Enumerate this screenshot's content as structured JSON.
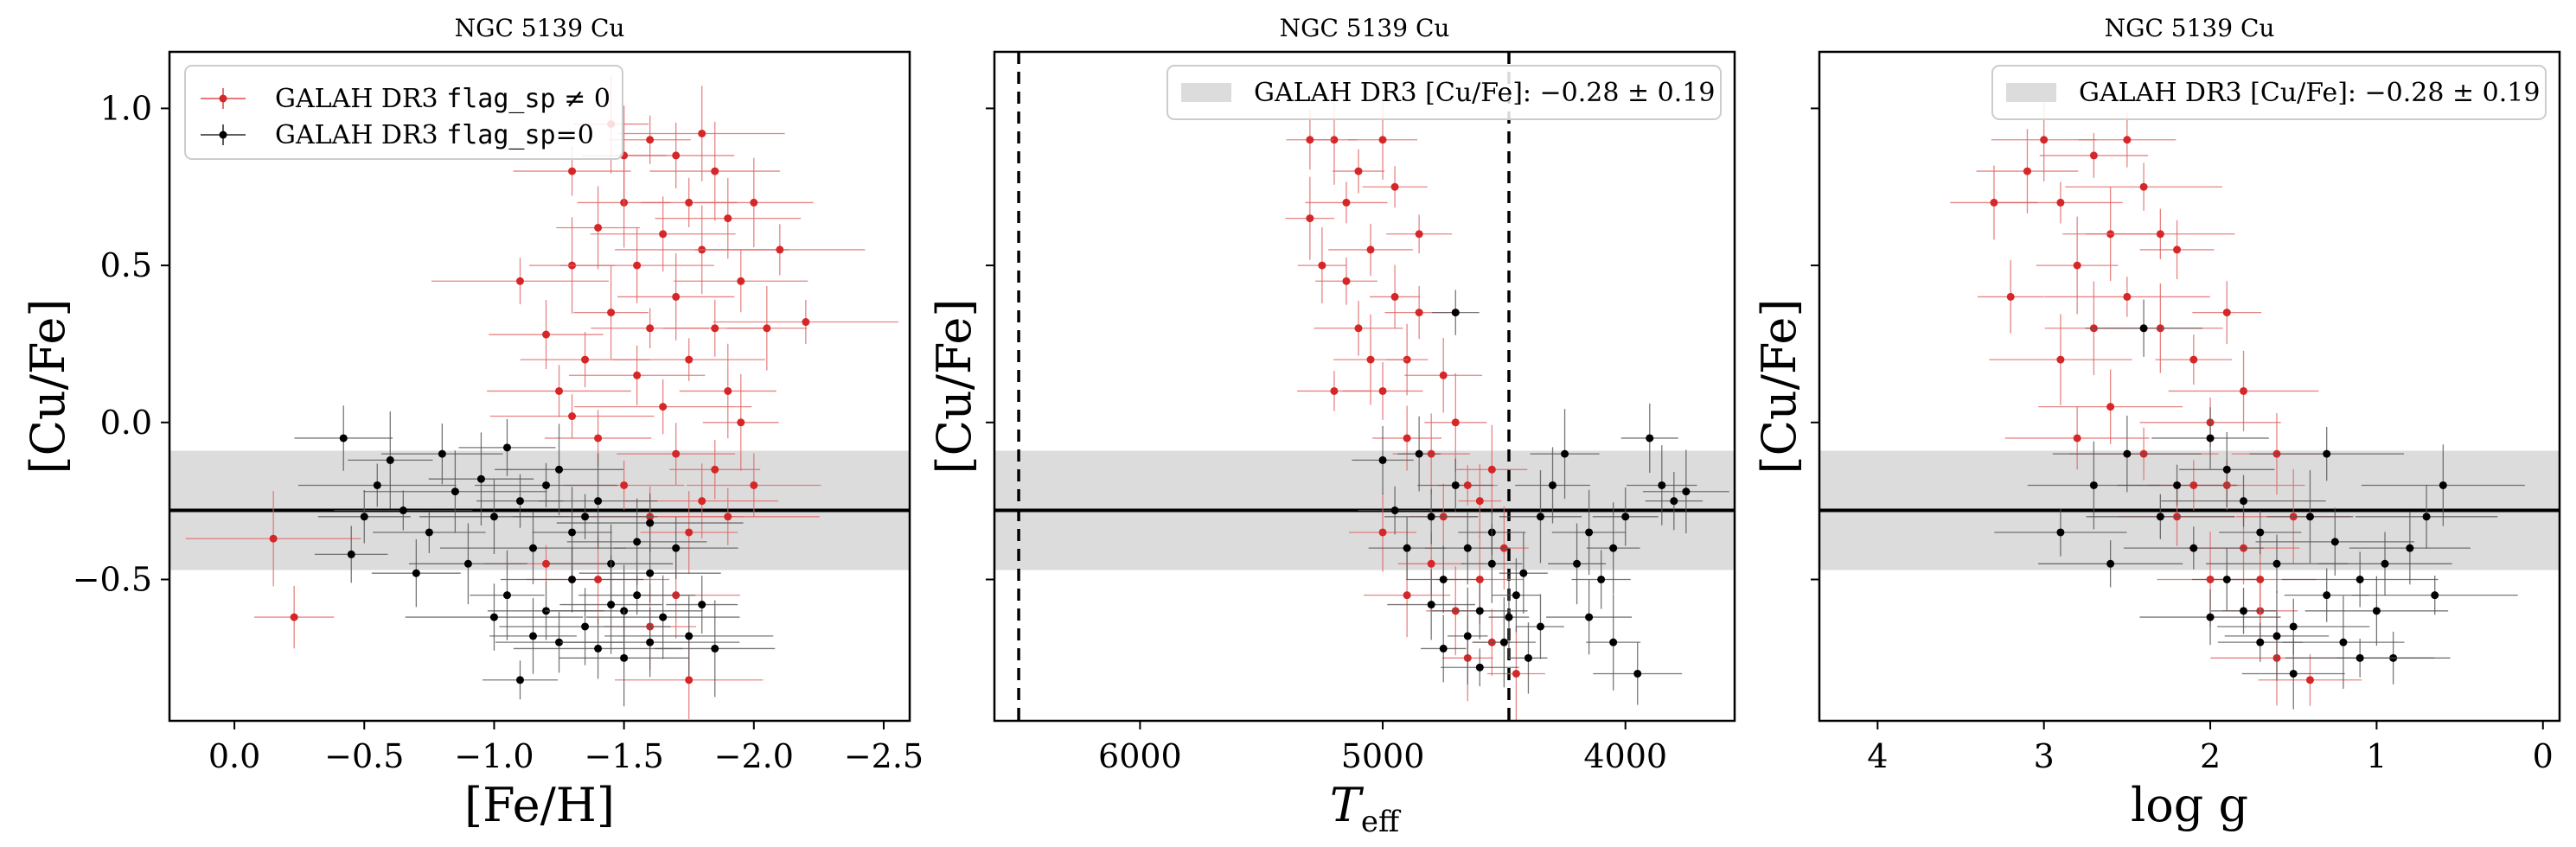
{
  "figure": {
    "panels": [
      {
        "title": "NGC 5139 Cu",
        "xlabel": "[Fe/H]",
        "ylabel": "[Cu/Fe]",
        "xticks": [
          "0.0",
          "−0.5",
          "−1.0",
          "−1.5",
          "−2.0",
          "−2.5"
        ],
        "yticks": [
          "1.0",
          "0.5",
          "0.0",
          "−0.5"
        ],
        "legend": {
          "flagged_prefix": "GALAH DR3 ",
          "flagged_code": "flag_sp",
          "flagged_suffix": " ≠ 0",
          "clean_prefix": "GALAH DR3 ",
          "clean_code": "flag_sp",
          "clean_suffix": "=0"
        }
      },
      {
        "title": "NGC 5139 Cu",
        "xlabel": "T",
        "xlabel_sub": "eff",
        "ylabel": "[Cu/Fe]",
        "xticks": [
          "6000",
          "5000",
          "4000"
        ],
        "legend": {
          "band": "GALAH DR3 [Cu/Fe]: −0.28 ± 0.19"
        }
      },
      {
        "title": "NGC 5139 Cu",
        "xlabel": "log g",
        "ylabel": "[Cu/Fe]",
        "xticks": [
          "4",
          "3",
          "2",
          "1",
          "0"
        ],
        "legend": {
          "band": "GALAH DR3 [Cu/Fe]: −0.28 ± 0.19"
        }
      }
    ]
  },
  "chart_data": [
    {
      "type": "scatter",
      "title": "NGC 5139 Cu",
      "xlabel": "[Fe/H]",
      "ylabel": "[Cu/Fe]",
      "xlim": [
        0.25,
        -2.6
      ],
      "ylim": [
        -0.95,
        1.18
      ],
      "reference": {
        "value": -0.28,
        "sigma": 0.19,
        "label": "GALAH DR3 [Cu/Fe]: −0.28 ± 0.19"
      },
      "grid": false,
      "legend_position": "top-left",
      "colors": {
        "flagged": "#d62728",
        "clean": "#000000",
        "band": "#dcdcdc"
      },
      "series": [
        {
          "name": "GALAH DR3 flag_sp ≠ 0",
          "points": [
            [
              -0.15,
              -0.37
            ],
            [
              -0.23,
              -0.62
            ],
            [
              -1.1,
              0.45
            ],
            [
              -1.2,
              0.28
            ],
            [
              -1.25,
              0.1
            ],
            [
              -1.3,
              0.5
            ],
            [
              -1.3,
              0.8
            ],
            [
              -1.35,
              0.2
            ],
            [
              -1.4,
              0.62
            ],
            [
              -1.4,
              -0.05
            ],
            [
              -1.45,
              0.35
            ],
            [
              -1.5,
              0.7
            ],
            [
              -1.5,
              -0.2
            ],
            [
              -1.55,
              0.15
            ],
            [
              -1.55,
              0.5
            ],
            [
              -1.6,
              0.9
            ],
            [
              -1.6,
              0.3
            ],
            [
              -1.6,
              -0.3
            ],
            [
              -1.65,
              0.6
            ],
            [
              -1.65,
              0.05
            ],
            [
              -1.7,
              0.85
            ],
            [
              -1.7,
              0.4
            ],
            [
              -1.7,
              -0.1
            ],
            [
              -1.75,
              0.7
            ],
            [
              -1.75,
              0.2
            ],
            [
              -1.75,
              -0.35
            ],
            [
              -1.8,
              0.92
            ],
            [
              -1.8,
              0.55
            ],
            [
              -1.8,
              -0.25
            ],
            [
              -1.85,
              0.8
            ],
            [
              -1.85,
              0.3
            ],
            [
              -1.85,
              -0.15
            ],
            [
              -1.9,
              0.65
            ],
            [
              -1.9,
              0.1
            ],
            [
              -1.9,
              -0.3
            ],
            [
              -1.95,
              0.45
            ],
            [
              -1.95,
              0.0
            ],
            [
              -2.0,
              0.7
            ],
            [
              -2.0,
              -0.2
            ],
            [
              -2.05,
              0.3
            ],
            [
              -2.1,
              0.55
            ],
            [
              -2.2,
              0.32
            ],
            [
              -1.75,
              -0.82
            ],
            [
              -1.4,
              -0.5
            ],
            [
              -1.6,
              -0.65
            ],
            [
              -1.5,
              0.85
            ],
            [
              -1.45,
              0.95
            ],
            [
              -1.7,
              -0.55
            ],
            [
              -1.3,
              0.02
            ],
            [
              -1.2,
              -0.45
            ]
          ]
        },
        {
          "name": "GALAH DR3 flag_sp=0",
          "points": [
            [
              -0.42,
              -0.05
            ],
            [
              -0.45,
              -0.42
            ],
            [
              -0.5,
              -0.3
            ],
            [
              -0.55,
              -0.2
            ],
            [
              -0.6,
              -0.12
            ],
            [
              -0.65,
              -0.28
            ],
            [
              -0.75,
              -0.35
            ],
            [
              -0.8,
              -0.1
            ],
            [
              -0.85,
              -0.22
            ],
            [
              -0.9,
              -0.45
            ],
            [
              -0.95,
              -0.18
            ],
            [
              -1.0,
              -0.3
            ],
            [
              -1.05,
              -0.08
            ],
            [
              -1.05,
              -0.55
            ],
            [
              -1.1,
              -0.82
            ],
            [
              -1.1,
              -0.25
            ],
            [
              -1.15,
              -0.4
            ],
            [
              -1.2,
              -0.6
            ],
            [
              -1.25,
              -0.15
            ],
            [
              -1.25,
              -0.7
            ],
            [
              -1.3,
              -0.35
            ],
            [
              -1.3,
              -0.5
            ],
            [
              -1.35,
              -0.65
            ],
            [
              -1.4,
              -0.25
            ],
            [
              -1.4,
              -0.72
            ],
            [
              -1.45,
              -0.45
            ],
            [
              -1.5,
              -0.6
            ],
            [
              -1.5,
              -0.75
            ],
            [
              -1.55,
              -0.38
            ],
            [
              -1.55,
              -0.55
            ],
            [
              -1.6,
              -0.7
            ],
            [
              -1.6,
              -0.48
            ],
            [
              -1.65,
              -0.62
            ],
            [
              -1.7,
              -0.4
            ],
            [
              -1.75,
              -0.68
            ],
            [
              -1.8,
              -0.58
            ],
            [
              -1.85,
              -0.72
            ],
            [
              -1.2,
              -0.2
            ],
            [
              -1.35,
              -0.3
            ],
            [
              -0.7,
              -0.48
            ],
            [
              -1.45,
              -0.58
            ],
            [
              -1.0,
              -0.62
            ],
            [
              -1.6,
              -0.32
            ],
            [
              -1.15,
              -0.68
            ]
          ]
        }
      ]
    },
    {
      "type": "scatter",
      "title": "NGC 5139 Cu",
      "xlabel": "T_eff",
      "ylabel": "[Cu/Fe]",
      "xlim": [
        6600,
        3550
      ],
      "ylim": [
        -0.95,
        1.18
      ],
      "reference": {
        "value": -0.28,
        "sigma": 0.19,
        "label": "GALAH DR3 [Cu/Fe]: −0.28 ± 0.19"
      },
      "vertical_lines": [
        6500,
        4480
      ],
      "grid": false,
      "legend_position": "top-right",
      "series": [
        {
          "name": "GALAH DR3 flag_sp ≠ 0",
          "points": [
            [
              5200,
              0.9
            ],
            [
              5150,
              0.7
            ],
            [
              5100,
              0.8
            ],
            [
              5050,
              0.55
            ],
            [
              5000,
              0.9
            ],
            [
              4950,
              0.4
            ],
            [
              5250,
              0.5
            ],
            [
              5300,
              0.65
            ],
            [
              5100,
              0.3
            ],
            [
              5000,
              0.1
            ],
            [
              4900,
              0.2
            ],
            [
              4850,
              0.6
            ],
            [
              4800,
              -0.1
            ],
            [
              4750,
              -0.3
            ],
            [
              4700,
              0.0
            ],
            [
              4650,
              -0.2
            ],
            [
              4600,
              -0.5
            ],
            [
              4550,
              -0.7
            ],
            [
              4500,
              -0.4
            ],
            [
              4450,
              -0.8
            ],
            [
              5050,
              0.2
            ],
            [
              4950,
              0.75
            ],
            [
              5150,
              0.45
            ],
            [
              4900,
              -0.05
            ],
            [
              4800,
              -0.45
            ],
            [
              4700,
              -0.6
            ],
            [
              4600,
              -0.25
            ],
            [
              5200,
              0.1
            ],
            [
              4850,
              0.35
            ],
            [
              4750,
              0.15
            ],
            [
              5300,
              0.9
            ],
            [
              4650,
              -0.75
            ],
            [
              4550,
              -0.15
            ],
            [
              5000,
              -0.35
            ],
            [
              4900,
              -0.55
            ]
          ]
        },
        {
          "name": "GALAH DR3 flag_sp=0",
          "points": [
            [
              4850,
              -0.1
            ],
            [
              4800,
              -0.3
            ],
            [
              4750,
              -0.5
            ],
            [
              4700,
              -0.2
            ],
            [
              4650,
              -0.4
            ],
            [
              4600,
              -0.6
            ],
            [
              4550,
              -0.35
            ],
            [
              4500,
              -0.7
            ],
            [
              4450,
              -0.55
            ],
            [
              4400,
              -0.75
            ],
            [
              4350,
              -0.65
            ],
            [
              4300,
              -0.2
            ],
            [
              4250,
              -0.1
            ],
            [
              4200,
              -0.45
            ],
            [
              4150,
              -0.35
            ],
            [
              4100,
              -0.5
            ],
            [
              4050,
              -0.7
            ],
            [
              4000,
              -0.3
            ],
            [
              3950,
              -0.8
            ],
            [
              3900,
              -0.05
            ],
            [
              3850,
              -0.2
            ],
            [
              3800,
              -0.25
            ],
            [
              3750,
              -0.22
            ],
            [
              4700,
              0.35
            ],
            [
              4750,
              -0.72
            ],
            [
              4650,
              -0.68
            ],
            [
              4600,
              -0.78
            ],
            [
              4950,
              -0.28
            ],
            [
              5000,
              -0.12
            ],
            [
              4550,
              -0.45
            ],
            [
              4480,
              -0.62
            ],
            [
              4420,
              -0.48
            ],
            [
              4900,
              -0.4
            ],
            [
              4800,
              -0.58
            ],
            [
              4350,
              -0.3
            ],
            [
              4150,
              -0.62
            ],
            [
              4050,
              -0.4
            ]
          ]
        }
      ]
    },
    {
      "type": "scatter",
      "title": "NGC 5139 Cu",
      "xlabel": "log g",
      "ylabel": "[Cu/Fe]",
      "xlim": [
        4.35,
        -0.1
      ],
      "ylim": [
        -0.95,
        1.18
      ],
      "reference": {
        "value": -0.28,
        "sigma": 0.19,
        "label": "GALAH DR3 [Cu/Fe]: −0.28 ± 0.19"
      },
      "grid": false,
      "legend_position": "top-right",
      "series": [
        {
          "name": "GALAH DR3 flag_sp ≠ 0",
          "points": [
            [
              3.1,
              0.8
            ],
            [
              3.0,
              0.9
            ],
            [
              2.9,
              0.7
            ],
            [
              2.8,
              0.5
            ],
            [
              2.7,
              0.85
            ],
            [
              2.6,
              0.6
            ],
            [
              2.5,
              0.4
            ],
            [
              2.4,
              0.75
            ],
            [
              2.3,
              0.3
            ],
            [
              2.2,
              0.55
            ],
            [
              2.1,
              0.2
            ],
            [
              2.0,
              0.0
            ],
            [
              1.9,
              -0.2
            ],
            [
              1.8,
              -0.4
            ],
            [
              1.7,
              -0.6
            ],
            [
              1.6,
              -0.75
            ],
            [
              3.3,
              0.7
            ],
            [
              3.2,
              0.4
            ],
            [
              2.9,
              0.2
            ],
            [
              2.6,
              0.05
            ],
            [
              2.4,
              -0.1
            ],
            [
              2.2,
              -0.3
            ],
            [
              2.0,
              -0.5
            ],
            [
              1.8,
              0.1
            ],
            [
              1.6,
              -0.1
            ],
            [
              1.5,
              -0.3
            ],
            [
              1.4,
              -0.82
            ],
            [
              2.5,
              0.9
            ],
            [
              2.7,
              0.3
            ],
            [
              2.3,
              0.6
            ],
            [
              1.9,
              0.35
            ],
            [
              2.1,
              -0.2
            ],
            [
              1.7,
              -0.5
            ],
            [
              2.8,
              -0.05
            ]
          ]
        },
        {
          "name": "GALAH DR3 flag_sp=0",
          "points": [
            [
              2.9,
              -0.35
            ],
            [
              2.7,
              -0.2
            ],
            [
              2.5,
              -0.1
            ],
            [
              2.3,
              -0.3
            ],
            [
              2.1,
              -0.4
            ],
            [
              2.0,
              -0.05
            ],
            [
              1.9,
              -0.5
            ],
            [
              1.8,
              -0.6
            ],
            [
              1.7,
              -0.7
            ],
            [
              1.6,
              -0.45
            ],
            [
              1.5,
              -0.65
            ],
            [
              1.4,
              -0.3
            ],
            [
              1.3,
              -0.55
            ],
            [
              1.2,
              -0.7
            ],
            [
              1.1,
              -0.5
            ],
            [
              1.0,
              -0.6
            ],
            [
              0.9,
              -0.75
            ],
            [
              0.8,
              -0.4
            ],
            [
              0.7,
              -0.3
            ],
            [
              0.6,
              -0.2
            ],
            [
              2.2,
              -0.2
            ],
            [
              2.4,
              0.3
            ],
            [
              1.9,
              -0.15
            ],
            [
              1.7,
              -0.35
            ],
            [
              1.5,
              -0.8
            ],
            [
              1.3,
              -0.1
            ],
            [
              1.1,
              -0.75
            ],
            [
              0.95,
              -0.45
            ],
            [
              0.65,
              -0.55
            ],
            [
              2.6,
              -0.45
            ],
            [
              2.0,
              -0.62
            ],
            [
              1.8,
              -0.25
            ],
            [
              1.6,
              -0.68
            ],
            [
              1.25,
              -0.38
            ]
          ]
        }
      ]
    }
  ]
}
